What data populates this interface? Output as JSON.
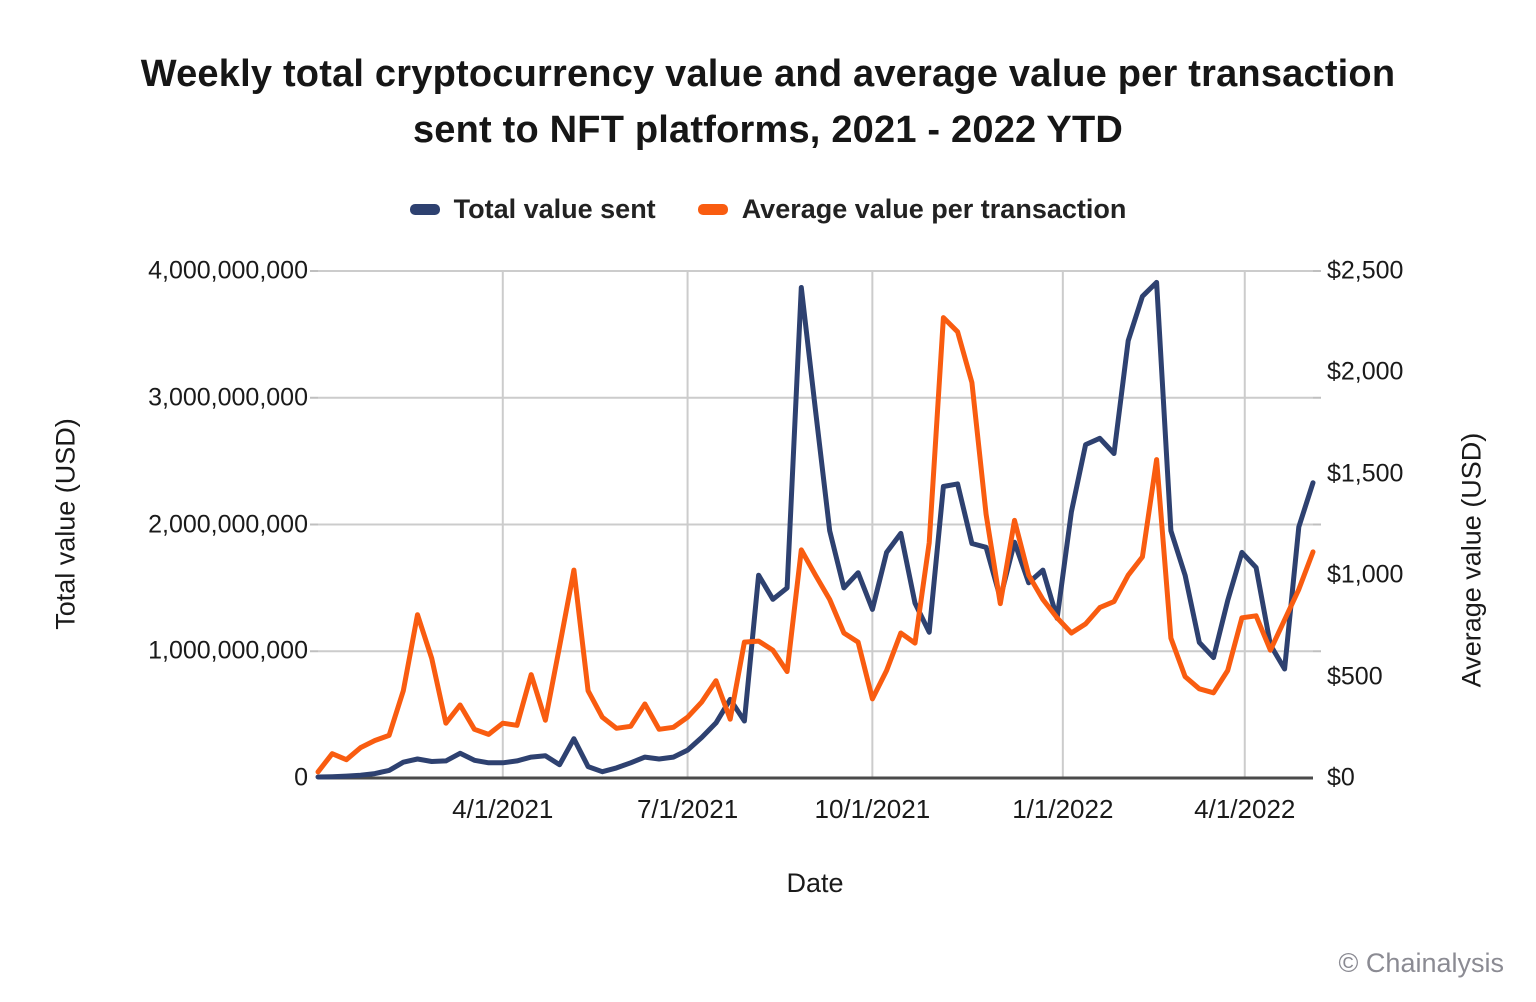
{
  "title_lines": [
    "Weekly total cryptocurrency value and average value per transaction",
    "sent to NFT platforms, 2021 - 2022 YTD"
  ],
  "watermark": "© Chainalysis",
  "chart_data": {
    "type": "line",
    "title": "Weekly total cryptocurrency value and average value per transaction sent to NFT platforms, 2021 - 2022 YTD",
    "xlabel": "Date",
    "grid": true,
    "legend_position": "top",
    "background": "#ffffff",
    "x": [
      "1/4/2021",
      "1/11/2021",
      "1/18/2021",
      "1/25/2021",
      "2/1/2021",
      "2/8/2021",
      "2/15/2021",
      "2/22/2021",
      "3/1/2021",
      "3/8/2021",
      "3/15/2021",
      "3/22/2021",
      "3/29/2021",
      "4/5/2021",
      "4/12/2021",
      "4/19/2021",
      "4/26/2021",
      "5/3/2021",
      "5/10/2021",
      "5/17/2021",
      "5/24/2021",
      "5/31/2021",
      "6/7/2021",
      "6/14/2021",
      "6/21/2021",
      "6/28/2021",
      "7/5/2021",
      "7/12/2021",
      "7/19/2021",
      "7/26/2021",
      "8/2/2021",
      "8/9/2021",
      "8/16/2021",
      "8/23/2021",
      "8/30/2021",
      "9/6/2021",
      "9/13/2021",
      "9/20/2021",
      "9/27/2021",
      "10/4/2021",
      "10/11/2021",
      "10/18/2021",
      "10/25/2021",
      "11/1/2021",
      "11/8/2021",
      "11/15/2021",
      "11/22/2021",
      "11/29/2021",
      "12/6/2021",
      "12/13/2021",
      "12/20/2021",
      "12/27/2021",
      "1/3/2022",
      "1/10/2022",
      "1/17/2022",
      "1/24/2022",
      "1/31/2022",
      "2/7/2022",
      "2/14/2022",
      "2/21/2022",
      "2/28/2022",
      "3/7/2022",
      "3/14/2022",
      "3/21/2022",
      "3/28/2022",
      "4/4/2022",
      "4/11/2022",
      "4/18/2022",
      "4/25/2022",
      "5/2/2022",
      "5/9/2022"
    ],
    "series": [
      {
        "name": "Total value sent",
        "axis": "left",
        "color": "#2e4170",
        "values": [
          8000000,
          10000000,
          15000000,
          22000000,
          35000000,
          60000000,
          125000000,
          150000000,
          130000000,
          135000000,
          195000000,
          140000000,
          120000000,
          120000000,
          135000000,
          165000000,
          175000000,
          105000000,
          310000000,
          90000000,
          50000000,
          80000000,
          120000000,
          165000000,
          150000000,
          165000000,
          220000000,
          320000000,
          435000000,
          620000000,
          450000000,
          1600000000,
          1410000000,
          1500000000,
          3870000000,
          2900000000,
          1950000000,
          1500000000,
          1620000000,
          1330000000,
          1780000000,
          1930000000,
          1380000000,
          1150000000,
          2300000000,
          2320000000,
          1850000000,
          1820000000,
          1420000000,
          1860000000,
          1540000000,
          1640000000,
          1260000000,
          2100000000,
          2630000000,
          2680000000,
          2560000000,
          3450000000,
          3800000000,
          3910000000,
          1950000000,
          1600000000,
          1070000000,
          950000000,
          1400000000,
          1780000000,
          1660000000,
          1050000000,
          860000000,
          1980000000,
          2330000000
        ]
      },
      {
        "name": "Average value per transaction",
        "axis": "right",
        "color": "#f95c10",
        "values": [
          30,
          120,
          90,
          150,
          185,
          210,
          430,
          805,
          590,
          270,
          360,
          240,
          215,
          270,
          260,
          510,
          285,
          650,
          1025,
          430,
          300,
          245,
          255,
          365,
          240,
          250,
          300,
          375,
          480,
          290,
          670,
          675,
          630,
          525,
          1125,
          1000,
          880,
          715,
          670,
          390,
          530,
          715,
          665,
          1160,
          2270,
          2200,
          1950,
          1300,
          860,
          1270,
          1000,
          880,
          790,
          715,
          760,
          840,
          870,
          1000,
          1090,
          1570,
          690,
          500,
          440,
          420,
          530,
          790,
          800,
          630,
          780,
          930,
          1115
        ]
      }
    ],
    "y_axis_left": {
      "label": "Total value (USD)",
      "min": 0,
      "max": 4000000000,
      "ticks": [
        "0",
        "1,000,000,000",
        "2,000,000,000",
        "3,000,000,000",
        "4,000,000,000"
      ]
    },
    "y_axis_right": {
      "label": "Average value (USD)",
      "min": 0,
      "max": 2500,
      "ticks": [
        "$0",
        "$500",
        "$1,000",
        "$1,500",
        "$2,000",
        "$2,500"
      ]
    },
    "x_axis": {
      "label": "Date",
      "ticks": [
        {
          "label": "4/1/2021",
          "pos": 13
        },
        {
          "label": "7/1/2021",
          "pos": 26
        },
        {
          "label": "10/1/2021",
          "pos": 39
        },
        {
          "label": "1/1/2022",
          "pos": 52.4
        },
        {
          "label": "4/1/2022",
          "pos": 65.2
        }
      ]
    }
  }
}
